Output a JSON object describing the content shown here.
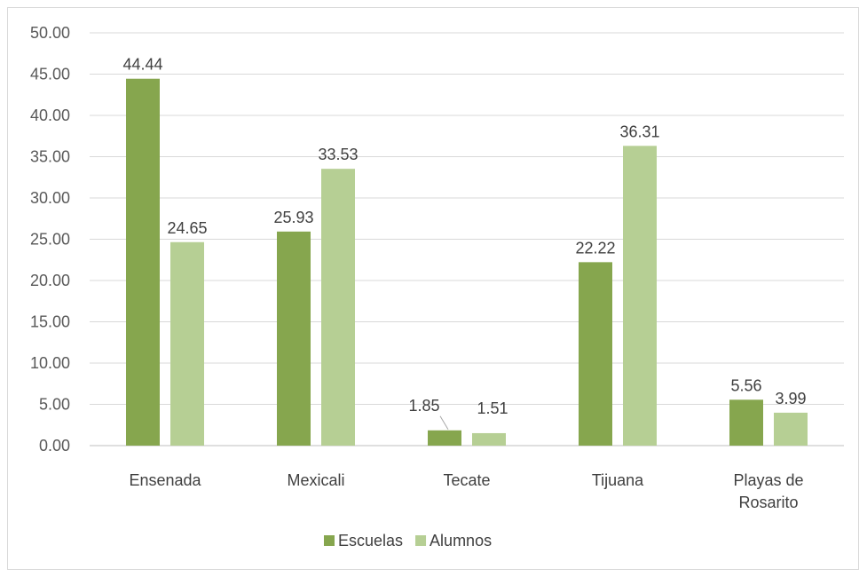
{
  "chart_data": {
    "type": "bar",
    "title": "",
    "xlabel": "",
    "ylabel": "",
    "categories": [
      [
        "Ensenada"
      ],
      [
        "Mexicali"
      ],
      [
        "Tecate"
      ],
      [
        "Tijuana"
      ],
      [
        "Playas de",
        "Rosarito"
      ]
    ],
    "series": [
      {
        "name": "Escuelas",
        "color": "#86a64e",
        "values": [
          44.44,
          25.93,
          1.85,
          22.22,
          5.56
        ],
        "labels": [
          "44.44",
          "25.93",
          "1.85",
          "22.22",
          "5.56"
        ]
      },
      {
        "name": "Alumnos",
        "color": "#b6cf94",
        "values": [
          24.65,
          33.53,
          1.51,
          36.31,
          3.99
        ],
        "labels": [
          "24.65",
          "33.53",
          "1.51",
          "36.31",
          "3.99"
        ]
      }
    ],
    "ylim": [
      0,
      50
    ],
    "yticks": [
      "0.00",
      "5.00",
      "10.00",
      "15.00",
      "20.00",
      "25.00",
      "30.00",
      "35.00",
      "40.00",
      "45.00",
      "50.00"
    ],
    "grid": true,
    "legend": "bottom"
  }
}
